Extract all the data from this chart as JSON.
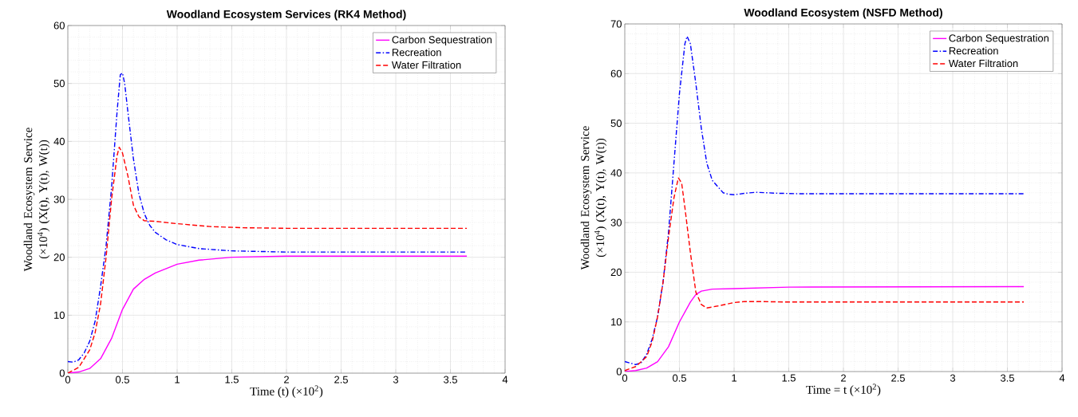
{
  "chart_data": [
    {
      "type": "line",
      "title": "Woodland Ecosystem Services (RK4 Method)",
      "xlabel": "Time (t) (×10$^{2}$)",
      "ylabel": "Woodland Ecosystem Service (×10$^{4}$) (X(t), Y(t), W(t))",
      "xlim": [
        0,
        4
      ],
      "ylim": [
        0,
        60
      ],
      "xticks": [
        0,
        0.5,
        1,
        1.5,
        2,
        2.5,
        3,
        3.5,
        4
      ],
      "yticks": [
        0,
        10,
        20,
        30,
        40,
        50,
        60
      ],
      "grid": true,
      "legend": "top right",
      "series": [
        {
          "name": "Carbon Sequestration",
          "color": "#ff00ff",
          "line_style": "solid",
          "x": [
            0,
            0.1,
            0.2,
            0.3,
            0.4,
            0.5,
            0.6,
            0.7,
            0.8,
            1.0,
            1.2,
            1.5,
            2,
            3.65
          ],
          "values": [
            0,
            0.2,
            0.8,
            2.5,
            6,
            11,
            14.5,
            16.2,
            17.3,
            18.8,
            19.5,
            20,
            20.2,
            20.2
          ]
        },
        {
          "name": "Recreation",
          "color": "#0000ff",
          "line_style": "dashdot",
          "x": [
            0,
            0.05,
            0.1,
            0.15,
            0.2,
            0.25,
            0.3,
            0.35,
            0.4,
            0.45,
            0.48,
            0.5,
            0.52,
            0.55,
            0.6,
            0.65,
            0.7,
            0.75,
            0.8,
            0.9,
            1.0,
            1.2,
            1.5,
            2,
            3.65
          ],
          "values": [
            2,
            1.9,
            2.3,
            3.5,
            5.5,
            9,
            15,
            22,
            32,
            45,
            51.5,
            51.8,
            50,
            45,
            37,
            31,
            27.5,
            25.5,
            24.3,
            23,
            22.2,
            21.5,
            21.1,
            20.9,
            20.9
          ]
        },
        {
          "name": "Water Filtration",
          "color": "#ff0000",
          "line_style": "dashed",
          "x": [
            0,
            0.1,
            0.2,
            0.25,
            0.3,
            0.35,
            0.4,
            0.45,
            0.47,
            0.5,
            0.55,
            0.6,
            0.65,
            0.7,
            0.8,
            1.0,
            1.3,
            1.6,
            2,
            3.65
          ],
          "values": [
            0,
            1,
            4,
            7,
            12,
            20,
            30,
            37.5,
            39,
            38,
            34,
            29,
            27,
            26.3,
            26.2,
            25.8,
            25.3,
            25.1,
            25,
            25
          ]
        }
      ]
    },
    {
      "type": "line",
      "title": "Woodland Ecosystem (NSFD Method)",
      "xlabel": "Time = t (×10$^{2}$)",
      "ylabel": "Woodland Ecosystem Service (×10$^{4}$) (X(t), Y(t), W(t))",
      "xlim": [
        0,
        4
      ],
      "ylim": [
        0,
        70
      ],
      "xticks": [
        0,
        0.5,
        1,
        1.5,
        2,
        2.5,
        3,
        3.5,
        4
      ],
      "yticks": [
        0,
        10,
        20,
        30,
        40,
        50,
        60,
        70
      ],
      "grid": true,
      "legend": "top right",
      "series": [
        {
          "name": "Carbon Sequestration",
          "color": "#ff00ff",
          "line_style": "solid",
          "x": [
            0,
            0.1,
            0.2,
            0.3,
            0.4,
            0.5,
            0.6,
            0.65,
            0.7,
            0.8,
            1.0,
            1.5,
            3.65
          ],
          "values": [
            0,
            0.2,
            0.7,
            2,
            5,
            10,
            14,
            15.5,
            16.2,
            16.6,
            16.7,
            17,
            17.1
          ]
        },
        {
          "name": "Recreation",
          "color": "#0000ff",
          "line_style": "dashdot",
          "x": [
            0,
            0.1,
            0.15,
            0.2,
            0.25,
            0.3,
            0.35,
            0.4,
            0.45,
            0.5,
            0.55,
            0.57,
            0.6,
            0.65,
            0.7,
            0.75,
            0.8,
            0.9,
            0.95,
            1.0,
            1.1,
            1.2,
            1.4,
            1.6,
            3.65
          ],
          "values": [
            2,
            1.4,
            1.8,
            3.5,
            6.5,
            11,
            18,
            28,
            42,
            56,
            66,
            67.5,
            66,
            58,
            49,
            42,
            38.5,
            36,
            35.7,
            35.6,
            35.9,
            36.1,
            35.9,
            35.8,
            35.8
          ]
        },
        {
          "name": "Water Filtration",
          "color": "#ff0000",
          "line_style": "dashed",
          "x": [
            0,
            0.1,
            0.2,
            0.25,
            0.3,
            0.35,
            0.4,
            0.45,
            0.49,
            0.52,
            0.55,
            0.6,
            0.65,
            0.7,
            0.75,
            0.85,
            1.0,
            1.1,
            1.2,
            1.5,
            3.65
          ],
          "values": [
            0.2,
            1,
            3,
            6,
            11,
            18,
            27,
            35,
            39,
            38,
            33,
            24,
            16,
            13.5,
            12.8,
            13.2,
            13.9,
            14.1,
            14.1,
            14,
            14
          ]
        }
      ]
    }
  ]
}
